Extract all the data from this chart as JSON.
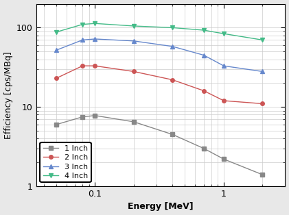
{
  "title": "",
  "xlabel": "Energy [MeV]",
  "ylabel": "Efficiency [cps/MBq]",
  "series": [
    {
      "label": "1 Inch",
      "color": "#888888",
      "marker": "s",
      "x": [
        0.05,
        0.08,
        0.1,
        0.2,
        0.4,
        0.7,
        1.0,
        2.0
      ],
      "y": [
        6.0,
        7.5,
        7.8,
        6.5,
        4.5,
        3.0,
        2.2,
        1.4
      ]
    },
    {
      "label": "2 Inch",
      "color": "#cc5555",
      "marker": "o",
      "x": [
        0.05,
        0.08,
        0.1,
        0.2,
        0.4,
        0.7,
        1.0,
        2.0
      ],
      "y": [
        23.0,
        33.0,
        33.0,
        28.0,
        22.0,
        16.0,
        12.0,
        11.0
      ]
    },
    {
      "label": "3 Inch",
      "color": "#6688cc",
      "marker": "^",
      "x": [
        0.05,
        0.08,
        0.1,
        0.2,
        0.4,
        0.7,
        1.0,
        2.0
      ],
      "y": [
        52.0,
        70.0,
        72.0,
        68.0,
        58.0,
        45.0,
        33.0,
        28.0
      ]
    },
    {
      "label": "4 Inch",
      "color": "#44bb88",
      "marker": "v",
      "x": [
        0.05,
        0.08,
        0.1,
        0.2,
        0.4,
        0.7,
        1.0,
        2.0
      ],
      "y": [
        88.0,
        110.0,
        113.0,
        105.0,
        100.0,
        93.0,
        84.0,
        70.0
      ]
    }
  ],
  "xlim": [
    0.035,
    3.0
  ],
  "ylim": [
    1.0,
    200.0
  ],
  "figsize": [
    4.21,
    3.14
  ],
  "dpi": 100,
  "legend_loc": "lower left",
  "grid_color": "#cccccc",
  "bg_color": "#ffffff",
  "fig_bg_color": "#e8e8e8"
}
